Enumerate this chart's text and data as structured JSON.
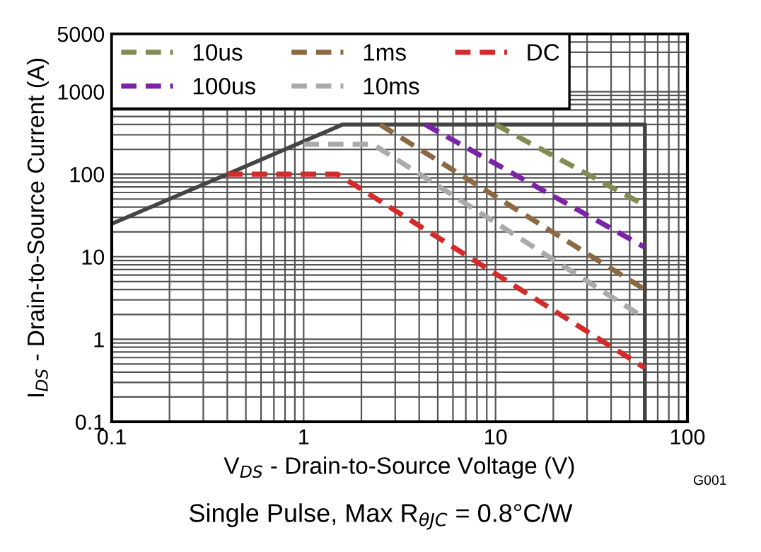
{
  "chart_data": {
    "type": "line",
    "xlabel": "V$_{DS}$ - Drain-to-Source Voltage (V)",
    "ylabel": "I$_{DS}$ - Drain-to-Source Current (A)",
    "annotations": [
      "G001",
      "Single Pulse, Max R$_{θJC}$ = 0.8°C/W"
    ],
    "log": "xy",
    "grid": true,
    "legend": "top left",
    "line_style": "dashed",
    "xlim": [
      0.1,
      100
    ],
    "xticks": [
      0.1,
      1,
      10,
      100
    ],
    "ylim": [
      0.1,
      5000
    ],
    "yticks": [
      0.1,
      1,
      10,
      100,
      1000,
      5000
    ],
    "series": [
      {
        "color": "#444444",
        "line_style": "solid",
        "x": [
          0.1,
          1.6,
          60,
          60
        ],
        "values": [
          25,
          400,
          400,
          0.1
        ]
      },
      {
        "name": "10us",
        "color": "#7f8c52",
        "x": [
          10,
          60
        ],
        "values": [
          400,
          42
        ]
      },
      {
        "name": "100us",
        "color": "#7b22a8",
        "x": [
          4.3,
          60
        ],
        "values": [
          400,
          13
        ]
      },
      {
        "name": "1ms",
        "color": "#8b6942",
        "x": [
          2.5,
          60
        ],
        "values": [
          400,
          4
        ]
      },
      {
        "name": "10ms",
        "color": "#aaaaaa",
        "x": [
          1.0,
          2.3,
          60
        ],
        "values": [
          230,
          230,
          1.8
        ]
      },
      {
        "name": "DC",
        "color": "#d42a2a",
        "x": [
          0.4,
          1.5,
          60
        ],
        "values": [
          100,
          100,
          0.45
        ]
      }
    ]
  }
}
